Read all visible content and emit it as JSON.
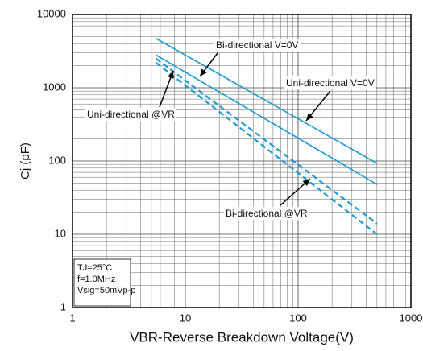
{
  "chart_data": {
    "type": "line",
    "x_label": "VBR-Reverse Breakdown Voltage(V)",
    "y_label": "Cj (pF)",
    "xlog": true,
    "ylog": true,
    "grid": true,
    "xlim": [
      1,
      1000
    ],
    "xticks": [
      1,
      10,
      100,
      1000
    ],
    "ylim": [
      1,
      10000
    ],
    "yticks": [
      1,
      10,
      100,
      1000,
      10000
    ],
    "series": [
      {
        "name": "Uni-directional V=0V",
        "color": "#1a9ad6",
        "dashed": false,
        "x": [
          5.5,
          500
        ],
        "values": [
          4700,
          93
        ]
      },
      {
        "name": "Bi-directional V=0V",
        "color": "#1a9ad6",
        "dashed": false,
        "x": [
          5.5,
          500
        ],
        "values": [
          2800,
          48
        ]
      },
      {
        "name": "Uni-directional @VR",
        "color": "#1a9ad6",
        "dashed": true,
        "x": [
          5.5,
          500
        ],
        "values": [
          2500,
          14
        ]
      },
      {
        "name": "Bi-directional @VR",
        "color": "#1a9ad6",
        "dashed": true,
        "x": [
          5.5,
          500
        ],
        "values": [
          2200,
          10
        ]
      }
    ],
    "conditions": [
      "TJ=25°C",
      "f=1.0MHz",
      "Vsig=50mVp-p"
    ]
  }
}
